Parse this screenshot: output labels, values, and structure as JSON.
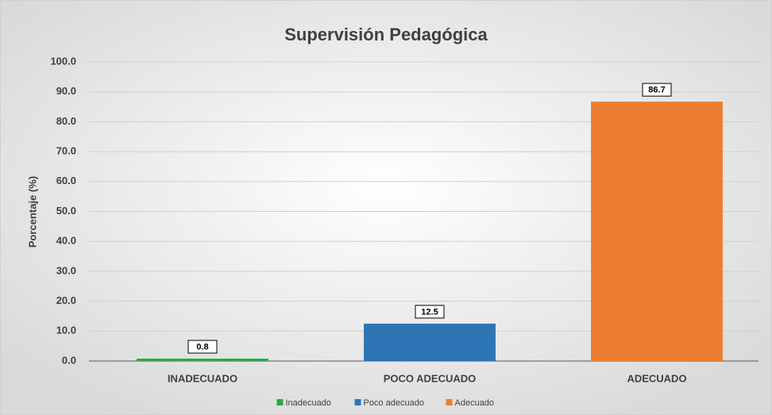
{
  "chart_data": {
    "type": "bar",
    "title": "Supervisión Pedagógica",
    "y_label": "Porcentaje (%)",
    "categories": [
      "INADECUADO",
      "POCO ADECUADO",
      "ADECUADO"
    ],
    "values": [
      0.8,
      12.5,
      86.7
    ],
    "colors": [
      "#2aa84a",
      "#2e75b6",
      "#ed7d31"
    ],
    "legend": [
      "Inadecuado",
      "Poco adecuado",
      "Adecuado"
    ],
    "ylim": [
      0,
      100
    ],
    "yticks": [
      {
        "value": 0,
        "label": "0.0"
      },
      {
        "value": 10,
        "label": "10.0"
      },
      {
        "value": 20,
        "label": "20.0"
      },
      {
        "value": 30,
        "label": "30.0"
      },
      {
        "value": 40,
        "label": "40.0"
      },
      {
        "value": 50,
        "label": "50.0"
      },
      {
        "value": 60,
        "label": "60.0"
      },
      {
        "value": 70,
        "label": "70.0"
      },
      {
        "value": 80,
        "label": "80.0"
      },
      {
        "value": 90,
        "label": "90.0"
      },
      {
        "value": 100,
        "label": "100.0"
      }
    ],
    "grid": true
  }
}
